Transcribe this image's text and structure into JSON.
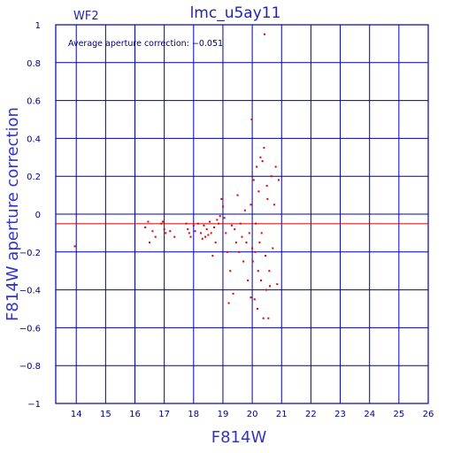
{
  "chart_data": {
    "type": "scatter",
    "title": "lmc_u5ay11",
    "chip_label": "WF2",
    "annotation": "Average aperture correction: −0.051",
    "xlabel": "F814W",
    "ylabel": "F814W aperture correction",
    "xlim": [
      13.3,
      26
    ],
    "ylim": [
      -1,
      1
    ],
    "x_ticks": [
      14,
      15,
      16,
      17,
      18,
      19,
      20,
      21,
      22,
      23,
      24,
      25,
      26
    ],
    "y_ticks": [
      -1,
      -0.8,
      -0.6,
      -0.4,
      -0.2,
      0,
      0.2,
      0.4,
      0.6,
      0.8,
      1
    ],
    "x_tick_labels": [
      "14",
      "15",
      "16",
      "17",
      "18",
      "19",
      "20",
      "21",
      "22",
      "23",
      "24",
      "25",
      "26"
    ],
    "y_tick_labels": [
      "−1",
      "−0.8",
      "−0.6",
      "−0.4",
      "−0.2",
      "0",
      "0.2",
      "0.4",
      "0.6",
      "0.8",
      "1"
    ],
    "grid": true,
    "average_line": -0.051,
    "colors": {
      "axes": "#0000aa",
      "grid": "#0000aa",
      "points": "#dd0000",
      "average_line": "#cc0000",
      "text": "#2222bb"
    },
    "points": [
      [
        13.95,
        -0.17
      ],
      [
        16.35,
        -0.07
      ],
      [
        16.45,
        -0.04
      ],
      [
        16.5,
        -0.15
      ],
      [
        16.6,
        -0.09
      ],
      [
        16.7,
        -0.12
      ],
      [
        16.9,
        -0.05
      ],
      [
        16.95,
        -0.04
      ],
      [
        17.0,
        -0.08
      ],
      [
        17.05,
        -0.1
      ],
      [
        17.2,
        -0.09
      ],
      [
        17.35,
        -0.12
      ],
      [
        17.75,
        -0.05
      ],
      [
        17.8,
        -0.08
      ],
      [
        17.85,
        -0.1
      ],
      [
        17.9,
        -0.12
      ],
      [
        18.0,
        -0.06
      ],
      [
        18.05,
        -0.09
      ],
      [
        18.15,
        -0.05
      ],
      [
        18.25,
        -0.1
      ],
      [
        18.3,
        -0.13
      ],
      [
        18.35,
        -0.06
      ],
      [
        18.4,
        -0.12
      ],
      [
        18.45,
        -0.08
      ],
      [
        18.5,
        -0.11
      ],
      [
        18.55,
        -0.04
      ],
      [
        18.6,
        -0.1
      ],
      [
        18.65,
        -0.22
      ],
      [
        18.7,
        -0.07
      ],
      [
        18.75,
        -0.15
      ],
      [
        18.8,
        -0.03
      ],
      [
        18.85,
        -0.05
      ],
      [
        18.9,
        -0.01
      ],
      [
        18.95,
        0.08
      ],
      [
        19.0,
        0.04
      ],
      [
        19.05,
        -0.02
      ],
      [
        19.1,
        -0.1
      ],
      [
        19.15,
        -0.2
      ],
      [
        19.2,
        -0.47
      ],
      [
        19.25,
        -0.3
      ],
      [
        19.3,
        -0.06
      ],
      [
        19.35,
        -0.42
      ],
      [
        19.4,
        -0.08
      ],
      [
        19.45,
        -0.15
      ],
      [
        19.5,
        0.1
      ],
      [
        19.55,
        -0.2
      ],
      [
        19.6,
        -0.05
      ],
      [
        19.65,
        -0.12
      ],
      [
        19.7,
        -0.25
      ],
      [
        19.75,
        0.02
      ],
      [
        19.8,
        -0.15
      ],
      [
        19.85,
        -0.35
      ],
      [
        19.9,
        -0.1
      ],
      [
        19.95,
        0.05
      ],
      [
        19.95,
        -0.44
      ],
      [
        19.98,
        0.5
      ],
      [
        20.0,
        -0.18
      ],
      [
        20.02,
        -0.25
      ],
      [
        20.05,
        0.18
      ],
      [
        20.08,
        -0.45
      ],
      [
        20.1,
        -0.2
      ],
      [
        20.12,
        -0.05
      ],
      [
        20.15,
        0.25
      ],
      [
        20.18,
        -0.5
      ],
      [
        20.2,
        -0.3
      ],
      [
        20.22,
        0.12
      ],
      [
        20.25,
        -0.15
      ],
      [
        20.28,
        0.3
      ],
      [
        20.3,
        -0.35
      ],
      [
        20.32,
        -0.1
      ],
      [
        20.35,
        0.28
      ],
      [
        20.38,
        -0.55
      ],
      [
        20.4,
        0.35
      ],
      [
        20.42,
        0.95
      ],
      [
        20.45,
        -0.22
      ],
      [
        20.48,
        -0.4
      ],
      [
        20.5,
        0.15
      ],
      [
        20.52,
        0.08
      ],
      [
        20.55,
        -0.55
      ],
      [
        20.58,
        -0.3
      ],
      [
        20.6,
        -0.38
      ],
      [
        20.65,
        0.2
      ],
      [
        20.7,
        -0.18
      ],
      [
        20.75,
        0.05
      ],
      [
        20.8,
        0.25
      ],
      [
        20.85,
        -0.37
      ],
      [
        20.9,
        0.18
      ]
    ]
  }
}
